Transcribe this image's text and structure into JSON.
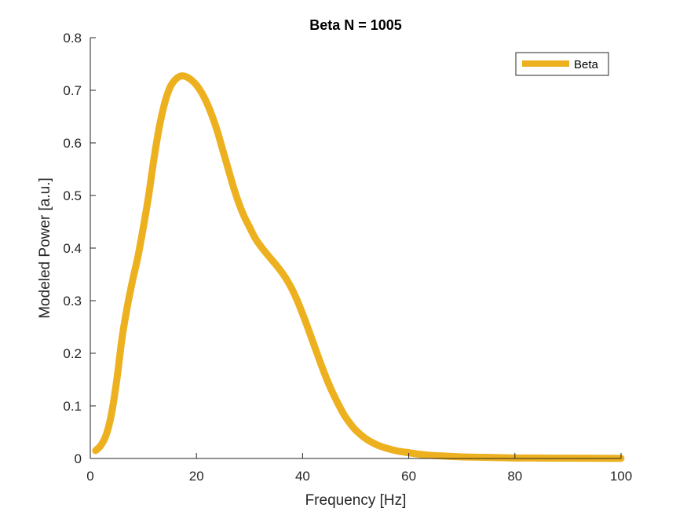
{
  "chart_data": {
    "type": "line",
    "title": "Beta N = 1005",
    "xlabel": "Frequency [Hz]",
    "ylabel": "Modeled Power [a.u.]",
    "xlim": [
      0,
      100
    ],
    "ylim": [
      0,
      0.8
    ],
    "xticks": [
      0,
      20,
      40,
      60,
      80,
      100
    ],
    "yticks": [
      0,
      0.1,
      0.2,
      0.3,
      0.4,
      0.5,
      0.6,
      0.7,
      0.8
    ],
    "grid": false,
    "legend_position": "top-right",
    "series": [
      {
        "name": "Beta",
        "color": "#EDB120",
        "x": [
          1,
          2,
          3,
          4,
          5,
          6,
          7,
          8,
          9,
          10,
          11,
          12,
          13,
          14,
          15,
          16,
          17,
          18,
          19,
          20,
          21,
          22,
          23,
          24,
          25,
          26,
          27,
          28,
          29,
          30,
          31,
          32,
          33,
          34,
          35,
          36,
          37,
          38,
          39,
          40,
          41,
          42,
          43,
          44,
          45,
          46,
          47,
          48,
          49,
          50,
          52,
          54,
          56,
          58,
          60,
          62,
          64,
          66,
          68,
          70,
          75,
          80,
          85,
          90,
          95,
          100
        ],
        "y": [
          0.015,
          0.025,
          0.045,
          0.085,
          0.15,
          0.23,
          0.29,
          0.34,
          0.385,
          0.44,
          0.5,
          0.57,
          0.63,
          0.675,
          0.705,
          0.72,
          0.727,
          0.726,
          0.72,
          0.71,
          0.695,
          0.675,
          0.65,
          0.62,
          0.585,
          0.55,
          0.515,
          0.485,
          0.46,
          0.44,
          0.42,
          0.405,
          0.392,
          0.38,
          0.368,
          0.355,
          0.34,
          0.322,
          0.3,
          0.275,
          0.248,
          0.22,
          0.192,
          0.165,
          0.14,
          0.118,
          0.098,
          0.08,
          0.066,
          0.054,
          0.037,
          0.026,
          0.019,
          0.014,
          0.011,
          0.008,
          0.006,
          0.005,
          0.004,
          0.003,
          0.002,
          0.001,
          0.0008,
          0.0005,
          0.0003,
          0.0002
        ]
      }
    ]
  }
}
